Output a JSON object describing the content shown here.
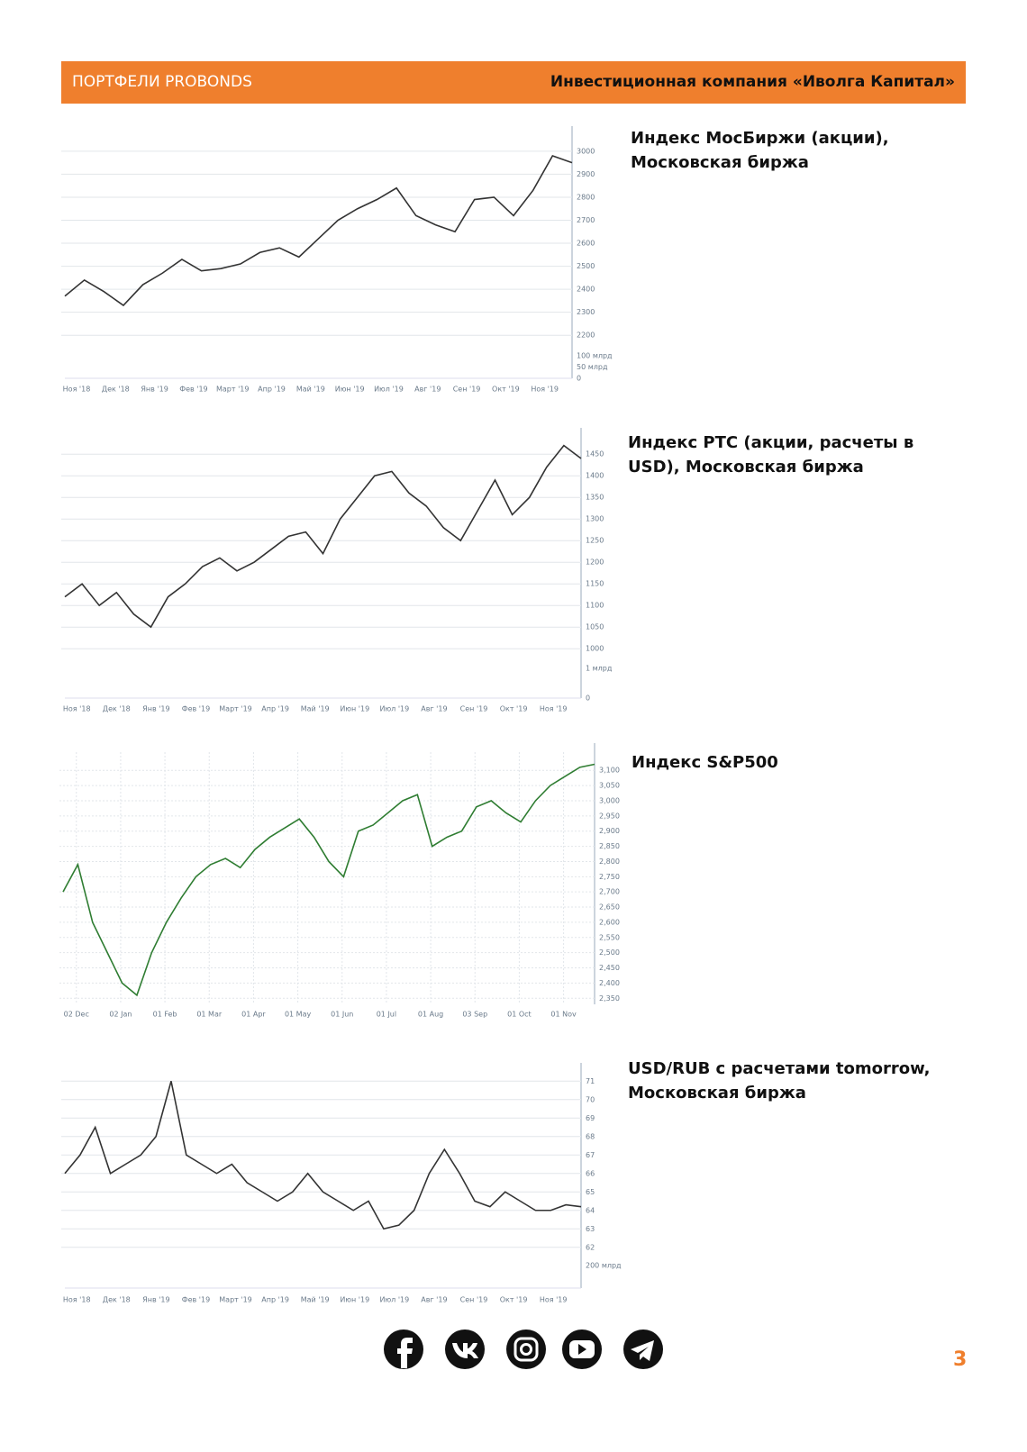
{
  "header": {
    "left": "ПОРТФЕЛИ PROBONDS",
    "right": "Инвестиционная компания «Иволга Капитал»"
  },
  "chart_data": [
    {
      "type": "line",
      "title": "Индекс МосБиржи (акции), Московская биржа",
      "color": "#333333",
      "xtick_labels": [
        "Ноя '18",
        "Дек '18",
        "Янв '19",
        "Фев '19",
        "Март '19",
        "Апр '19",
        "Май '19",
        "Июн '19",
        "Июл '19",
        "Авг '19",
        "Сен '19",
        "Окт '19",
        "Ноя '19"
      ],
      "values": [
        2370,
        2440,
        2390,
        2330,
        2420,
        2470,
        2530,
        2480,
        2490,
        2510,
        2560,
        2580,
        2540,
        2620,
        2700,
        2750,
        2790,
        2840,
        2720,
        2680,
        2650,
        2790,
        2800,
        2720,
        2830,
        2980,
        2950
      ],
      "ylim": [
        2150,
        3070
      ],
      "yticks": [
        2200,
        2300,
        2400,
        2500,
        2600,
        2700,
        2800,
        2900,
        3000
      ],
      "volume_labels": [
        "100 млрд",
        "50 млрд",
        "0"
      ]
    },
    {
      "type": "line",
      "title": "Индекс РТС (акции, расчеты в USD), Московская биржа",
      "color": "#333333",
      "xtick_labels": [
        "Ноя '18",
        "Дек '18",
        "Янв '19",
        "Фев '19",
        "Март '19",
        "Апр '19",
        "Май '19",
        "Июн '19",
        "Июл '19",
        "Авг '19",
        "Сен '19",
        "Окт '19",
        "Ноя '19"
      ],
      "values": [
        1120,
        1150,
        1100,
        1130,
        1080,
        1050,
        1120,
        1150,
        1190,
        1210,
        1180,
        1200,
        1230,
        1260,
        1270,
        1220,
        1300,
        1350,
        1400,
        1410,
        1360,
        1330,
        1280,
        1250,
        1320,
        1390,
        1310,
        1350,
        1420,
        1470,
        1440
      ],
      "ylim": [
        990,
        1490
      ],
      "yticks": [
        1000,
        1050,
        1100,
        1150,
        1200,
        1250,
        1300,
        1350,
        1400,
        1450
      ],
      "volume_labels": [
        "1 млрд",
        "0"
      ]
    },
    {
      "type": "line",
      "title": "Индекс S&P500",
      "color": "#2f7d32",
      "xtick_labels": [
        "02 Dec",
        "02 Jan",
        "01 Feb",
        "01 Mar",
        "01 Apr",
        "01 May",
        "01 Jun",
        "01 Jul",
        "01 Aug",
        "03 Sep",
        "01 Oct",
        "01 Nov"
      ],
      "values": [
        2700,
        2790,
        2600,
        2500,
        2400,
        2360,
        2500,
        2600,
        2680,
        2750,
        2790,
        2810,
        2780,
        2840,
        2880,
        2910,
        2940,
        2880,
        2800,
        2750,
        2900,
        2920,
        2960,
        3000,
        3020,
        2850,
        2880,
        2900,
        2980,
        3000,
        2960,
        2930,
        3000,
        3050,
        3080,
        3110,
        3120
      ],
      "ylim": [
        2330,
        3160
      ],
      "yticks": [
        {
          "value": 2350,
          "label": "2,350"
        },
        {
          "value": 2400,
          "label": "2,400"
        },
        {
          "value": 2450,
          "label": "2,450"
        },
        {
          "value": 2500,
          "label": "2,500"
        },
        {
          "value": 2550,
          "label": "2,550"
        },
        {
          "value": 2600,
          "label": "2,600"
        },
        {
          "value": 2650,
          "label": "2,650"
        },
        {
          "value": 2700,
          "label": "2,700"
        },
        {
          "value": 2750,
          "label": "2,750"
        },
        {
          "value": 2800,
          "label": "2,800"
        },
        {
          "value": 2850,
          "label": "2,850"
        },
        {
          "value": 2900,
          "label": "2,900"
        },
        {
          "value": 2950,
          "label": "2,950"
        },
        {
          "value": 3000,
          "label": "3,000"
        },
        {
          "value": 3050,
          "label": "3,050"
        },
        {
          "value": 3100,
          "label": "3,100"
        }
      ],
      "grid_x": true
    },
    {
      "type": "line",
      "title": "USD/RUB с расчетами tomorrow, Московская биржа",
      "color": "#333333",
      "xtick_labels": [
        "Ноя '18",
        "Дек '18",
        "Янв '19",
        "Фев '19",
        "Март '19",
        "Апр '19",
        "Май '19",
        "Июн '19",
        "Июл '19",
        "Авг '19",
        "Сен '19",
        "Окт '19",
        "Ноя '19"
      ],
      "values": [
        66,
        67,
        68.5,
        66,
        66.5,
        67,
        68,
        71,
        67,
        66.5,
        66,
        66.5,
        65.5,
        65,
        64.5,
        65,
        66,
        65,
        64.5,
        64,
        64.5,
        63,
        63.2,
        64,
        66,
        67.3,
        66,
        64.5,
        64.2,
        65,
        64.5,
        64,
        64,
        64.3,
        64.2
      ],
      "ylim": [
        61.5,
        71.5
      ],
      "yticks": [
        62,
        63,
        64,
        65,
        66,
        67,
        68,
        69,
        70,
        71
      ],
      "volume_labels": [
        "200 млрд"
      ]
    }
  ],
  "page_number": "3"
}
